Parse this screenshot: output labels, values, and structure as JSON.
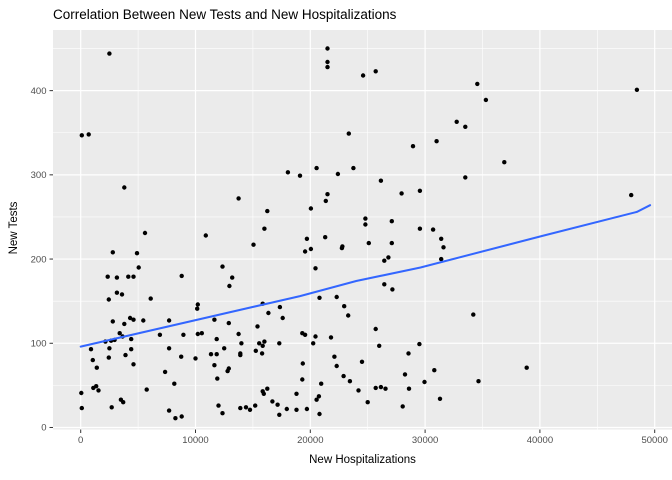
{
  "chart_data": {
    "type": "scatter",
    "title": "Correlation Between New Tests and New Hospitalizations",
    "xlabel": "New Hospitalizations",
    "ylabel": "New Tests",
    "x_ticks": [
      0,
      10000,
      20000,
      30000,
      40000,
      50000
    ],
    "y_ticks": [
      0,
      100,
      200,
      300,
      400
    ],
    "x_minor_ticks": [
      5000,
      15000,
      25000,
      35000,
      45000
    ],
    "y_minor_ticks": [
      50,
      150,
      250,
      350,
      450
    ],
    "xlim": [
      -2413,
      51507
    ],
    "ylim": [
      -2.4,
      472
    ],
    "legend_position": "none",
    "grid": "major and minor, white lines on grey panel",
    "panel_bg": "#EBEBEB",
    "grid_color": "#FFFFFF",
    "point_color": "#000000",
    "tick_color": "#333333",
    "tick_label_color": "#4D4D4D",
    "trend_color": "#3366FF",
    "points": [
      [
        2500,
        444
      ],
      [
        21500,
        450
      ],
      [
        21500,
        434
      ],
      [
        21500,
        428
      ],
      [
        100,
        347
      ],
      [
        700,
        348
      ],
      [
        23350,
        349
      ],
      [
        18050,
        303
      ],
      [
        19100,
        299
      ],
      [
        20550,
        308
      ],
      [
        22400,
        301
      ],
      [
        23750,
        308
      ],
      [
        3800,
        285
      ],
      [
        13750,
        272
      ],
      [
        21500,
        277
      ],
      [
        21350,
        269
      ],
      [
        20050,
        260
      ],
      [
        16250,
        257
      ],
      [
        16000,
        236
      ],
      [
        24600,
        418
      ],
      [
        25700,
        423
      ],
      [
        34550,
        408
      ],
      [
        35300,
        389
      ],
      [
        48450,
        401
      ],
      [
        32750,
        363
      ],
      [
        33500,
        357
      ],
      [
        31000,
        340
      ],
      [
        28950,
        334
      ],
      [
        36900,
        315
      ],
      [
        33500,
        297
      ],
      [
        26150,
        293
      ],
      [
        27950,
        278
      ],
      [
        29550,
        281
      ],
      [
        47950,
        276
      ],
      [
        24800,
        248
      ],
      [
        24800,
        241
      ],
      [
        27100,
        245
      ],
      [
        29550,
        236
      ],
      [
        30700,
        235
      ],
      [
        5600,
        231
      ],
      [
        10900,
        228
      ],
      [
        15050,
        217
      ],
      [
        19700,
        224
      ],
      [
        21300,
        226
      ],
      [
        22800,
        215
      ],
      [
        2800,
        208
      ],
      [
        4900,
        207
      ],
      [
        19550,
        209
      ],
      [
        20050,
        212
      ],
      [
        22750,
        213
      ],
      [
        5050,
        190
      ],
      [
        12350,
        191
      ],
      [
        20450,
        189
      ],
      [
        2350,
        179
      ],
      [
        3150,
        178
      ],
      [
        4150,
        179
      ],
      [
        4600,
        179
      ],
      [
        8800,
        180
      ],
      [
        13200,
        178
      ],
      [
        12950,
        168
      ],
      [
        3150,
        160
      ],
      [
        3600,
        158
      ],
      [
        2450,
        152
      ],
      [
        6100,
        153
      ],
      [
        20800,
        154
      ],
      [
        22300,
        155
      ],
      [
        22950,
        144
      ],
      [
        15850,
        147
      ],
      [
        10200,
        146
      ],
      [
        10150,
        141
      ],
      [
        17350,
        143
      ],
      [
        2800,
        126
      ],
      [
        3800,
        123
      ],
      [
        4300,
        130
      ],
      [
        4600,
        128
      ],
      [
        5450,
        127
      ],
      [
        7700,
        127
      ],
      [
        11650,
        128
      ],
      [
        12900,
        124
      ],
      [
        17600,
        130
      ],
      [
        16350,
        136
      ],
      [
        23300,
        133
      ],
      [
        15400,
        120
      ],
      [
        3400,
        112
      ],
      [
        3650,
        108
      ],
      [
        4400,
        105
      ],
      [
        6900,
        110
      ],
      [
        8950,
        110
      ],
      [
        10200,
        111
      ],
      [
        10550,
        112
      ],
      [
        11850,
        105
      ],
      [
        13750,
        111
      ],
      [
        19300,
        112
      ],
      [
        19550,
        110
      ],
      [
        20450,
        108
      ],
      [
        21800,
        107
      ],
      [
        2150,
        102
      ],
      [
        2650,
        103
      ],
      [
        2950,
        104
      ],
      [
        12500,
        94
      ],
      [
        14000,
        100
      ],
      [
        17300,
        100
      ],
      [
        900,
        93
      ],
      [
        2500,
        94
      ],
      [
        4400,
        93
      ],
      [
        7700,
        94
      ],
      [
        15550,
        100
      ],
      [
        15850,
        97
      ],
      [
        16000,
        102
      ],
      [
        15250,
        91
      ],
      [
        15800,
        88
      ],
      [
        13900,
        88
      ],
      [
        20250,
        100
      ],
      [
        1050,
        80
      ],
      [
        2450,
        83
      ],
      [
        3900,
        86
      ],
      [
        8750,
        84
      ],
      [
        10000,
        82
      ],
      [
        11350,
        87
      ],
      [
        11850,
        87
      ],
      [
        13900,
        86
      ],
      [
        22100,
        84
      ],
      [
        1400,
        71
      ],
      [
        4600,
        75
      ],
      [
        11650,
        74
      ],
      [
        12900,
        70
      ],
      [
        19350,
        76
      ],
      [
        22300,
        73
      ],
      [
        7350,
        66
      ],
      [
        11900,
        58
      ],
      [
        12800,
        67
      ],
      [
        19300,
        57
      ],
      [
        22900,
        61
      ],
      [
        23450,
        55
      ],
      [
        50,
        41
      ],
      [
        1100,
        47
      ],
      [
        1350,
        49
      ],
      [
        1550,
        44
      ],
      [
        5750,
        45
      ],
      [
        8150,
        52
      ],
      [
        15850,
        43
      ],
      [
        16250,
        46
      ],
      [
        20950,
        52
      ],
      [
        100,
        23
      ],
      [
        2700,
        24
      ],
      [
        3500,
        33
      ],
      [
        3700,
        30
      ],
      [
        12000,
        26
      ],
      [
        12350,
        17
      ],
      [
        13900,
        23
      ],
      [
        14400,
        24
      ],
      [
        14750,
        21
      ],
      [
        15200,
        26
      ],
      [
        15950,
        40
      ],
      [
        16700,
        31
      ],
      [
        17150,
        27
      ],
      [
        17300,
        15
      ],
      [
        17950,
        22
      ],
      [
        18800,
        21
      ],
      [
        18800,
        40
      ],
      [
        19700,
        22
      ],
      [
        20550,
        33
      ],
      [
        20800,
        16
      ],
      [
        20750,
        37
      ],
      [
        7700,
        20
      ],
      [
        8250,
        11
      ],
      [
        8800,
        13
      ],
      [
        25100,
        219
      ],
      [
        27100,
        219
      ],
      [
        26800,
        202
      ],
      [
        26450,
        198
      ],
      [
        31400,
        224
      ],
      [
        31600,
        214
      ],
      [
        31400,
        200
      ],
      [
        26450,
        170
      ],
      [
        27150,
        164
      ],
      [
        34200,
        134
      ],
      [
        25700,
        117
      ],
      [
        26000,
        97
      ],
      [
        29500,
        99
      ],
      [
        28550,
        88
      ],
      [
        24500,
        78
      ],
      [
        28250,
        63
      ],
      [
        30800,
        68
      ],
      [
        29950,
        54
      ],
      [
        38850,
        71
      ],
      [
        34650,
        55
      ],
      [
        24200,
        44
      ],
      [
        25700,
        47
      ],
      [
        26150,
        48
      ],
      [
        26550,
        46
      ],
      [
        28600,
        46
      ],
      [
        25000,
        30
      ],
      [
        28050,
        25
      ],
      [
        31300,
        34
      ]
    ],
    "trend_line": {
      "type": "smooth",
      "color": "#3366FF",
      "points": [
        [
          0,
          96
        ],
        [
          19100,
          156
        ],
        [
          24000,
          174
        ],
        [
          29600,
          190
        ],
        [
          40350,
          228
        ],
        [
          48450,
          256
        ],
        [
          49600,
          264
        ]
      ]
    }
  }
}
